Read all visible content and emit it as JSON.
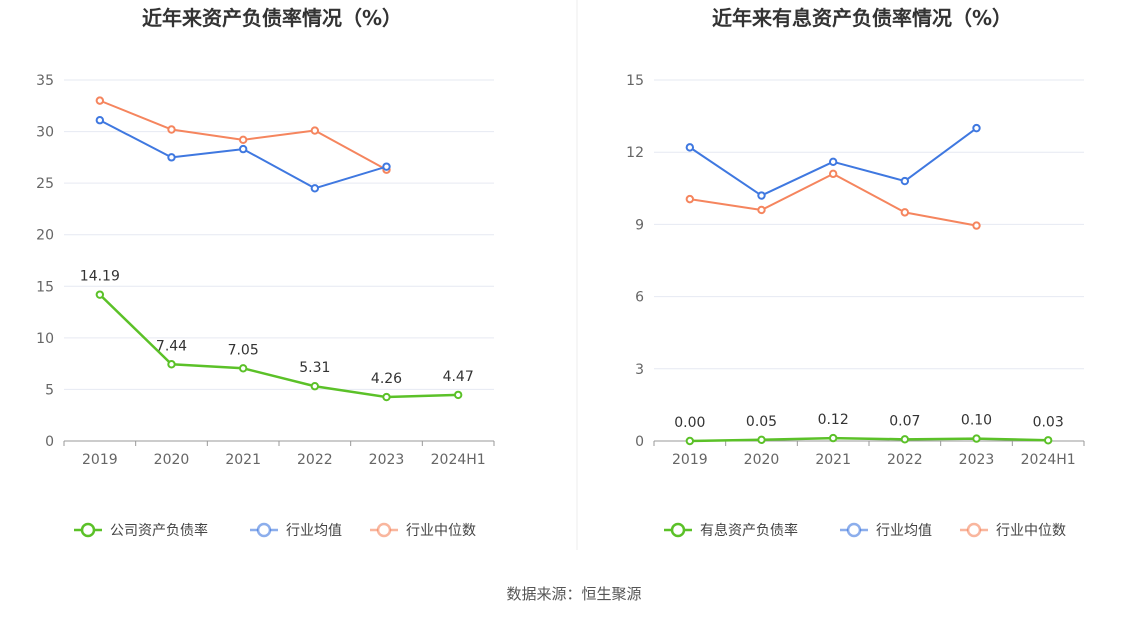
{
  "source": "数据来源：恒生聚源",
  "colors": {
    "company": "#5bc128",
    "avg": "#3f78e0",
    "median": "#f5855e",
    "grid": "#e6e9f2",
    "axis": "#999999"
  },
  "chart_data": [
    {
      "type": "line",
      "title": "近年来资产负债率情况（%）",
      "categories": [
        "2019",
        "2020",
        "2021",
        "2022",
        "2023",
        "2024H1"
      ],
      "ylim": [
        0,
        35
      ],
      "yticks": [
        0,
        5,
        10,
        15,
        20,
        25,
        30,
        35
      ],
      "grid": true,
      "legend_position": "bottom",
      "series": [
        {
          "name": "公司资产负债率",
          "key": "company",
          "values": [
            14.19,
            7.44,
            7.05,
            5.31,
            4.26,
            4.47
          ],
          "labels": [
            "14.19",
            "7.44",
            "7.05",
            "5.31",
            "4.26",
            "4.47"
          ]
        },
        {
          "name": "行业均值",
          "key": "avg",
          "values": [
            31.1,
            27.5,
            28.3,
            24.5,
            26.6,
            null
          ]
        },
        {
          "name": "行业中位数",
          "key": "median",
          "values": [
            33.0,
            30.2,
            29.2,
            30.1,
            26.3,
            null
          ]
        }
      ]
    },
    {
      "type": "line",
      "title": "近年来有息资产负债率情况（%）",
      "categories": [
        "2019",
        "2020",
        "2021",
        "2022",
        "2023",
        "2024H1"
      ],
      "ylim": [
        0,
        15
      ],
      "yticks": [
        0,
        3,
        6,
        9,
        12,
        15
      ],
      "grid": true,
      "legend_position": "bottom",
      "series": [
        {
          "name": "有息资产负债率",
          "key": "company",
          "values": [
            0.0,
            0.05,
            0.12,
            0.07,
            0.1,
            0.03
          ],
          "labels": [
            "0.00",
            "0.05",
            "0.12",
            "0.07",
            "0.10",
            "0.03"
          ]
        },
        {
          "name": "行业均值",
          "key": "avg",
          "values": [
            12.2,
            10.2,
            11.6,
            10.8,
            13.0,
            null
          ]
        },
        {
          "name": "行业中位数",
          "key": "median",
          "values": [
            10.05,
            9.6,
            11.1,
            9.5,
            8.95,
            null
          ]
        }
      ]
    }
  ]
}
